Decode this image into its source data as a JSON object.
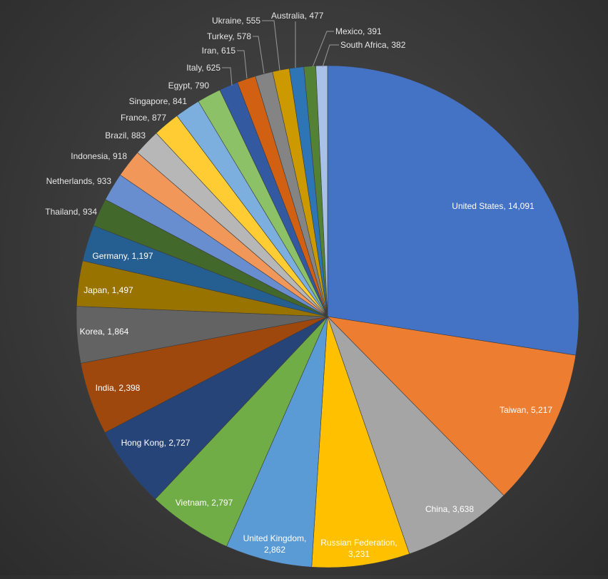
{
  "chart_data": {
    "type": "pie",
    "title": "",
    "slices": [
      {
        "label": "United States",
        "value": 14091,
        "value_text": "14,091",
        "color": "#4472C4"
      },
      {
        "label": "Taiwan",
        "value": 5217,
        "value_text": "5,217",
        "color": "#ED7D31"
      },
      {
        "label": "China",
        "value": 3638,
        "value_text": "3,638",
        "color": "#A5A5A5"
      },
      {
        "label": "Russian Federation",
        "value": 3231,
        "value_text": "3,231",
        "color": "#FFC000"
      },
      {
        "label": "United Kingdom",
        "value": 2862,
        "value_text": "2,862",
        "color": "#5B9BD5"
      },
      {
        "label": "Vietnam",
        "value": 2797,
        "value_text": "2,797",
        "color": "#70AD47"
      },
      {
        "label": "Hong Kong",
        "value": 2727,
        "value_text": "2,727",
        "color": "#264478"
      },
      {
        "label": "India",
        "value": 2398,
        "value_text": "2,398",
        "color": "#9E480E"
      },
      {
        "label": "Korea",
        "value": 1864,
        "value_text": "1,864",
        "color": "#636363"
      },
      {
        "label": "Japan",
        "value": 1497,
        "value_text": "1,497",
        "color": "#997300"
      },
      {
        "label": "Germany",
        "value": 1197,
        "value_text": "1,197",
        "color": "#255E91"
      },
      {
        "label": "Thailand",
        "value": 934,
        "value_text": "934",
        "color": "#43682B"
      },
      {
        "label": "Netherlands",
        "value": 933,
        "value_text": "933",
        "color": "#698ED0"
      },
      {
        "label": "Indonesia",
        "value": 918,
        "value_text": "918",
        "color": "#F1975A"
      },
      {
        "label": "Brazil",
        "value": 883,
        "value_text": "883",
        "color": "#B7B7B7"
      },
      {
        "label": "France",
        "value": 877,
        "value_text": "877",
        "color": "#FFCD33"
      },
      {
        "label": "Singapore",
        "value": 841,
        "value_text": "841",
        "color": "#7CAFDD"
      },
      {
        "label": "Egypt",
        "value": 790,
        "value_text": "790",
        "color": "#8CC168"
      },
      {
        "label": "Italy",
        "value": 625,
        "value_text": "625",
        "color": "#335AA1"
      },
      {
        "label": "Iran",
        "value": 615,
        "value_text": "615",
        "color": "#D26012"
      },
      {
        "label": "Turkey",
        "value": 578,
        "value_text": "578",
        "color": "#848484"
      },
      {
        "label": "Ukraine",
        "value": 555,
        "value_text": "555",
        "color": "#CC9A00"
      },
      {
        "label": "Australia",
        "value": 477,
        "value_text": "477",
        "color": "#2E75B6"
      },
      {
        "label": "Mexico",
        "value": 391,
        "value_text": "391",
        "color": "#548235"
      },
      {
        "label": "South Africa",
        "value": 382,
        "value_text": "382",
        "color": "#A9C0E8"
      }
    ],
    "legend": "none",
    "data_labels": "category, value"
  }
}
